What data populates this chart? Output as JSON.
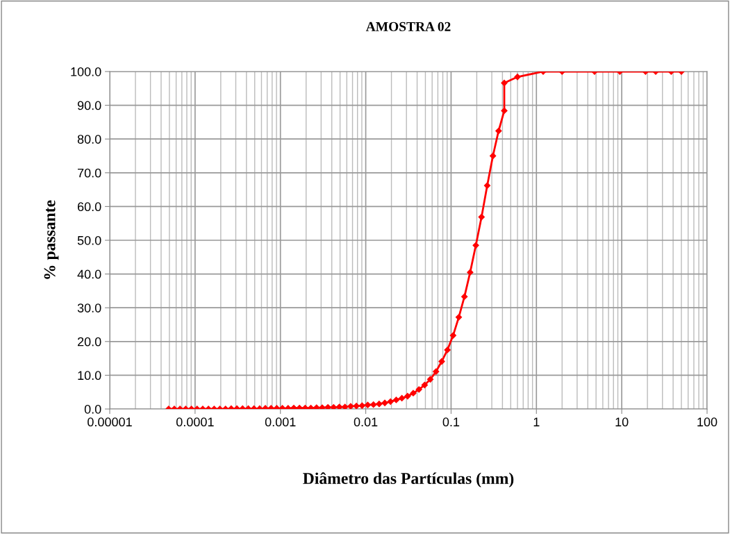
{
  "chart_data": {
    "type": "line",
    "title": "AMOSTRA 02",
    "xlabel": "Diâmetro das Partículas (mm)",
    "ylabel": "% passante",
    "log": "x",
    "grid": true,
    "marker": "diamond",
    "line_style": "solid",
    "legend": false,
    "xlim": [
      1e-05,
      100
    ],
    "ylim": [
      0,
      100
    ],
    "xticks": [
      {
        "value": 1e-05,
        "label": "0.00001"
      },
      {
        "value": 0.0001,
        "label": "0.0001"
      },
      {
        "value": 0.001,
        "label": "0.001"
      },
      {
        "value": 0.01,
        "label": "0.01"
      },
      {
        "value": 0.1,
        "label": "0.1"
      },
      1,
      10,
      100
    ],
    "yticks": [
      {
        "value": 0,
        "label": "0.0"
      },
      {
        "value": 10,
        "label": "10.0"
      },
      {
        "value": 20,
        "label": "20.0"
      },
      {
        "value": 30,
        "label": "30.0"
      },
      {
        "value": 40,
        "label": "40.0"
      },
      {
        "value": 50,
        "label": "50.0"
      },
      {
        "value": 60,
        "label": "60.0"
      },
      {
        "value": 70,
        "label": "70.0"
      },
      {
        "value": 80,
        "label": "80.0"
      },
      {
        "value": 90,
        "label": "90.0"
      },
      {
        "value": 100,
        "label": "100.0"
      }
    ],
    "series": [
      {
        "color": "#ff0000",
        "x": [
          4.9e-05,
          5.71e-05,
          6.66e-05,
          7.77e-05,
          9.06e-05,
          0.0001056,
          0.0001231,
          0.0001435,
          0.0001673,
          0.0001951,
          0.0002275,
          0.0002652,
          0.0003092,
          0.0003604,
          0.0004203,
          0.00049,
          0.000571,
          0.000666,
          0.000777,
          0.000906,
          0.001056,
          0.001231,
          0.001435,
          0.001673,
          0.001951,
          0.002275,
          0.002652,
          0.003092,
          0.003604,
          0.004203,
          0.0049,
          0.00571,
          0.00666,
          0.00777,
          0.00906,
          0.01056,
          0.01231,
          0.01435,
          0.01673,
          0.01951,
          0.02275,
          0.02652,
          0.03092,
          0.03604,
          0.04203,
          0.049,
          0.0571,
          0.0666,
          0.0777,
          0.0906,
          0.1056,
          0.1231,
          0.1435,
          0.1673,
          0.1951,
          0.2275,
          0.2652,
          0.3092,
          0.3604,
          0.4203,
          0.42,
          0.6,
          1.2,
          2.0,
          4.8,
          9.5,
          19,
          25,
          38,
          50
        ],
        "values": [
          0.0,
          0.0,
          0.0,
          0.0,
          0.0,
          0.0,
          0.0,
          0.0,
          0.0,
          0.0,
          0.0,
          0.1,
          0.1,
          0.1,
          0.1,
          0.1,
          0.1,
          0.2,
          0.2,
          0.2,
          0.2,
          0.2,
          0.3,
          0.3,
          0.3,
          0.3,
          0.4,
          0.4,
          0.5,
          0.5,
          0.6,
          0.6,
          0.8,
          0.9,
          1.0,
          1.2,
          1.3,
          1.5,
          1.8,
          2.2,
          2.7,
          3.2,
          3.8,
          4.7,
          5.8,
          7.1,
          8.8,
          11.1,
          14.1,
          17.5,
          21.8,
          27.2,
          33.3,
          40.5,
          48.5,
          56.9,
          66.2,
          75.0,
          82.4,
          88.4,
          96.6,
          98.4,
          100,
          100,
          100,
          100,
          100,
          100,
          100,
          100
        ]
      }
    ]
  }
}
